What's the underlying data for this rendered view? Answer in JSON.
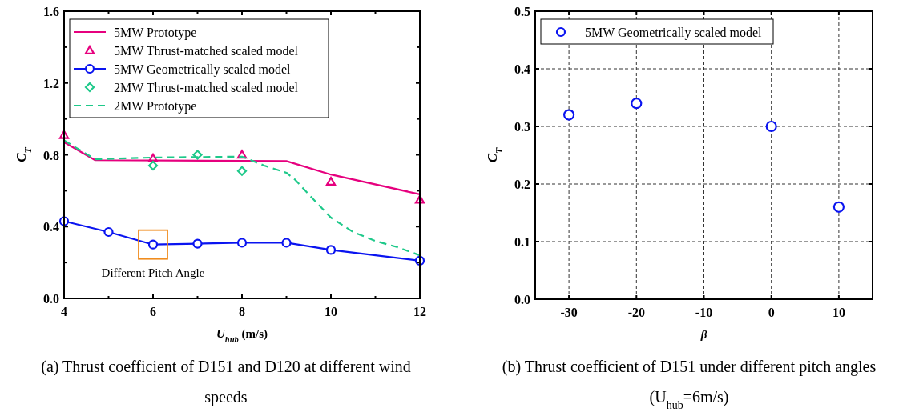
{
  "chart_data": [
    {
      "type": "line",
      "xlabel": "U$_{hub}$ (m/s)",
      "ylabel": "C$_{T}$",
      "xlim": [
        4,
        12
      ],
      "ylim": [
        0,
        1.6
      ],
      "xticks": [
        4,
        {
          "value": 5,
          "label": null
        },
        6,
        {
          "value": 7,
          "label": null
        },
        8,
        {
          "value": 9,
          "label": null
        },
        10,
        {
          "value": 11,
          "label": null
        },
        12
      ],
      "yticks": [
        {
          "value": 0,
          "label": "0.0"
        },
        {
          "value": 0.2,
          "label": null
        },
        0.4,
        {
          "value": 0.6,
          "label": null
        },
        0.8,
        {
          "value": 1.0,
          "label": null
        },
        1.2,
        {
          "value": 1.4,
          "label": null
        },
        1.6
      ],
      "legend": "top left",
      "series": [
        {
          "name": "5MW Prototype",
          "type": "line",
          "color": "#e6007e",
          "marker": "none",
          "line_style": "solid",
          "x": [
            4,
            4.7,
            9,
            10,
            12
          ],
          "values": [
            0.87,
            0.77,
            0.765,
            0.69,
            0.58
          ]
        },
        {
          "name": "5MW Thrust-matched scaled model",
          "type": "scatter",
          "color": "#e6007e",
          "marker": "triangle",
          "x": [
            4,
            6,
            8,
            10,
            12
          ],
          "values": [
            0.91,
            0.78,
            0.8,
            0.65,
            0.55
          ]
        },
        {
          "name": "5MW Geometrically scaled model",
          "type": "line",
          "color": "#0a14f0",
          "marker": "circle",
          "line_style": "solid",
          "x": [
            4,
            5,
            6,
            7,
            8,
            9,
            10,
            12
          ],
          "values": [
            0.43,
            0.37,
            0.3,
            0.305,
            0.31,
            0.31,
            0.27,
            0.21
          ]
        },
        {
          "name": "2MW Thrust-matched scaled model",
          "type": "scatter",
          "color": "#1ec98a",
          "marker": "diamond",
          "x": [
            6,
            7,
            8
          ],
          "values": [
            0.74,
            0.8,
            0.71
          ]
        },
        {
          "name": "2MW Prototype",
          "type": "line",
          "color": "#1ec98a",
          "marker": "none",
          "line_style": "dashed",
          "x": [
            4,
            4.7,
            6,
            8,
            8.5,
            9,
            9.2,
            9.5,
            10,
            10.5,
            11,
            11.5,
            12
          ],
          "values": [
            0.88,
            0.775,
            0.785,
            0.79,
            0.74,
            0.7,
            0.66,
            0.58,
            0.45,
            0.37,
            0.32,
            0.285,
            0.24
          ]
        }
      ],
      "annotations": [
        {
          "text": "Different Pitch Angle",
          "x": 6,
          "y": 0.3
        },
        "(a)   Thrust coefficient of D151 and D120 at different wind speeds"
      ]
    },
    {
      "type": "scatter",
      "xlabel": "β",
      "ylabel": "C$_{T}$",
      "xlim": [
        -35,
        15
      ],
      "ylim": [
        0,
        0.5
      ],
      "xticks": [
        -30,
        -20,
        -10,
        0,
        10
      ],
      "yticks": [
        {
          "value": 0,
          "label": "0.0"
        },
        0.1,
        0.2,
        0.3,
        0.4,
        0.5
      ],
      "grid": true,
      "legend": "top left",
      "marker": "circle",
      "series": [
        {
          "name": "5MW Geometrically scaled model",
          "color": "#0a14f0",
          "x": [
            -30,
            -20,
            0,
            10
          ],
          "values": [
            0.32,
            0.34,
            0.3,
            0.16
          ]
        }
      ],
      "annotations": [
        "(b)   Thrust coefficient of D151 under different pitch angles (U$_{hub}$=6m/s)"
      ]
    }
  ]
}
